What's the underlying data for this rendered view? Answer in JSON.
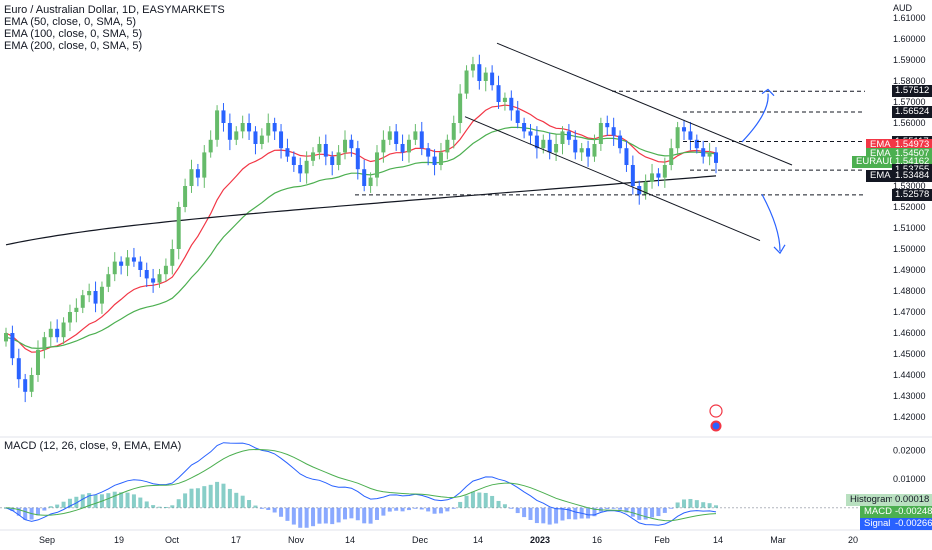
{
  "header": {
    "title": "Euro / Australian Dollar, 1D, EASYMARKETS",
    "ema50": "EMA (50, close, 0, SMA, 5)",
    "ema100": "EMA (100, close, 0, SMA, 5)",
    "ema200": "EMA (200, close, 0, SMA, 5)",
    "macd": "MACD (12, 26, close, 9, EMA, EMA)"
  },
  "axis": {
    "currency": "AUD",
    "price_ticks": [
      "1.61000",
      "1.60000",
      "1.59000",
      "1.58000",
      "1.57000",
      "1.56000",
      "1.55000",
      "1.54000",
      "1.53000",
      "1.52000",
      "1.51000",
      "1.50000",
      "1.49000",
      "1.48000",
      "1.47000",
      "1.46000",
      "1.45000",
      "1.44000",
      "1.43000",
      "1.42000"
    ],
    "macd_ticks": [
      "0.02000",
      "0.01000"
    ],
    "dates": [
      "Sep",
      "19",
      "Oct",
      "17",
      "Nov",
      "14",
      "Dec",
      "14",
      "2023",
      "16",
      "Feb",
      "14",
      "Mar",
      "20"
    ]
  },
  "price_tags": [
    {
      "label": "",
      "value": "1.57512",
      "kind": "level"
    },
    {
      "label": "",
      "value": "1.56524",
      "kind": "level"
    },
    {
      "label": "",
      "value": "1.55117",
      "kind": "level"
    },
    {
      "label": "EMA",
      "value": "1.54973",
      "kind": "ema-red"
    },
    {
      "label": "EMA",
      "value": "1.54507",
      "kind": "ema-green"
    },
    {
      "label": "EURAUD",
      "value": "1.54162",
      "kind": "price"
    },
    {
      "label": "",
      "value": "1.53755",
      "kind": "level"
    },
    {
      "label": "EMA",
      "value": "1.53484",
      "kind": "ema-black"
    },
    {
      "label": "",
      "value": "1.52578",
      "kind": "level"
    }
  ],
  "macd_tags": [
    {
      "label": "Histogram",
      "value": "0.00018",
      "kind": "hist"
    },
    {
      "label": "MACD",
      "value": "-0.00248",
      "kind": "macd"
    },
    {
      "label": "Signal",
      "value": "-0.00266",
      "kind": "signal"
    }
  ],
  "colors": {
    "up": "#26a69a",
    "up_light": "#66bb6a",
    "down": "#2962ff",
    "ema50": "#f23645",
    "ema100": "#4caf50",
    "ema200": "#131722",
    "macd": "#2962ff",
    "signal": "#4caf50"
  },
  "chart_data": {
    "type": "candlestick",
    "symbol": "EURAUD",
    "timeframe": "1D",
    "ylim": [
      1.42,
      1.61
    ],
    "close_series": [
      1.46,
      1.448,
      1.438,
      1.432,
      1.44,
      1.452,
      1.458,
      1.462,
      1.458,
      1.465,
      1.47,
      1.472,
      1.478,
      1.48,
      1.474,
      1.482,
      1.488,
      1.494,
      1.492,
      1.496,
      1.494,
      1.49,
      1.486,
      1.484,
      1.488,
      1.492,
      1.5,
      1.52,
      1.53,
      1.538,
      1.534,
      1.546,
      1.552,
      1.566,
      1.56,
      1.552,
      1.556,
      1.56,
      1.556,
      1.55,
      1.554,
      1.56,
      1.556,
      1.548,
      1.544,
      1.54,
      1.536,
      1.542,
      1.546,
      1.55,
      1.544,
      1.54,
      1.546,
      1.552,
      1.548,
      1.538,
      1.53,
      1.534,
      1.546,
      1.552,
      1.556,
      1.55,
      1.546,
      1.552,
      1.556,
      1.548,
      1.544,
      1.54,
      1.546,
      1.552,
      1.56,
      1.574,
      1.585,
      1.588,
      1.58,
      1.584,
      1.578,
      1.57,
      1.572,
      1.566,
      1.56,
      1.556,
      1.554,
      1.548,
      1.552,
      1.546,
      1.55,
      1.556,
      1.552,
      1.546,
      1.548,
      1.544,
      1.55,
      1.56,
      1.558,
      1.554,
      1.548,
      1.54,
      1.53,
      1.526,
      1.532,
      1.536,
      1.534,
      1.54,
      1.548,
      1.558,
      1.556,
      1.552,
      1.548,
      1.544,
      1.546,
      1.541
    ],
    "levels": [
      1.57512,
      1.56524,
      1.55117,
      1.53755,
      1.52578
    ]
  }
}
